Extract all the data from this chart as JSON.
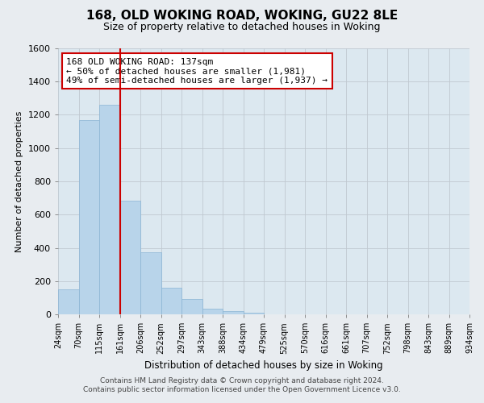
{
  "title": "168, OLD WOKING ROAD, WOKING, GU22 8LE",
  "subtitle": "Size of property relative to detached houses in Woking",
  "xlabel": "Distribution of detached houses by size in Woking",
  "ylabel": "Number of detached properties",
  "bar_values": [
    148,
    1170,
    1260,
    685,
    375,
    160,
    90,
    35,
    20,
    12,
    0,
    0,
    0,
    0,
    0,
    0,
    0,
    0,
    0,
    0
  ],
  "categories": [
    "24sqm",
    "70sqm",
    "115sqm",
    "161sqm",
    "206sqm",
    "252sqm",
    "297sqm",
    "343sqm",
    "388sqm",
    "434sqm",
    "479sqm",
    "525sqm",
    "570sqm",
    "616sqm",
    "661sqm",
    "707sqm",
    "752sqm",
    "798sqm",
    "843sqm",
    "889sqm",
    "934sqm"
  ],
  "bar_color": "#b8d4ea",
  "bar_edge_color": "#8ab4d4",
  "vline_color": "#cc0000",
  "annotation_text": "168 OLD WOKING ROAD: 137sqm\n← 50% of detached houses are smaller (1,981)\n49% of semi-detached houses are larger (1,937) →",
  "annotation_box_color": "#ffffff",
  "annotation_box_edge": "#cc0000",
  "ylim": [
    0,
    1600
  ],
  "yticks": [
    0,
    200,
    400,
    600,
    800,
    1000,
    1200,
    1400,
    1600
  ],
  "footer_line1": "Contains HM Land Registry data © Crown copyright and database right 2024.",
  "footer_line2": "Contains public sector information licensed under the Open Government Licence v3.0.",
  "bg_color": "#e8ecf0",
  "plot_bg_color": "#dce8f0"
}
